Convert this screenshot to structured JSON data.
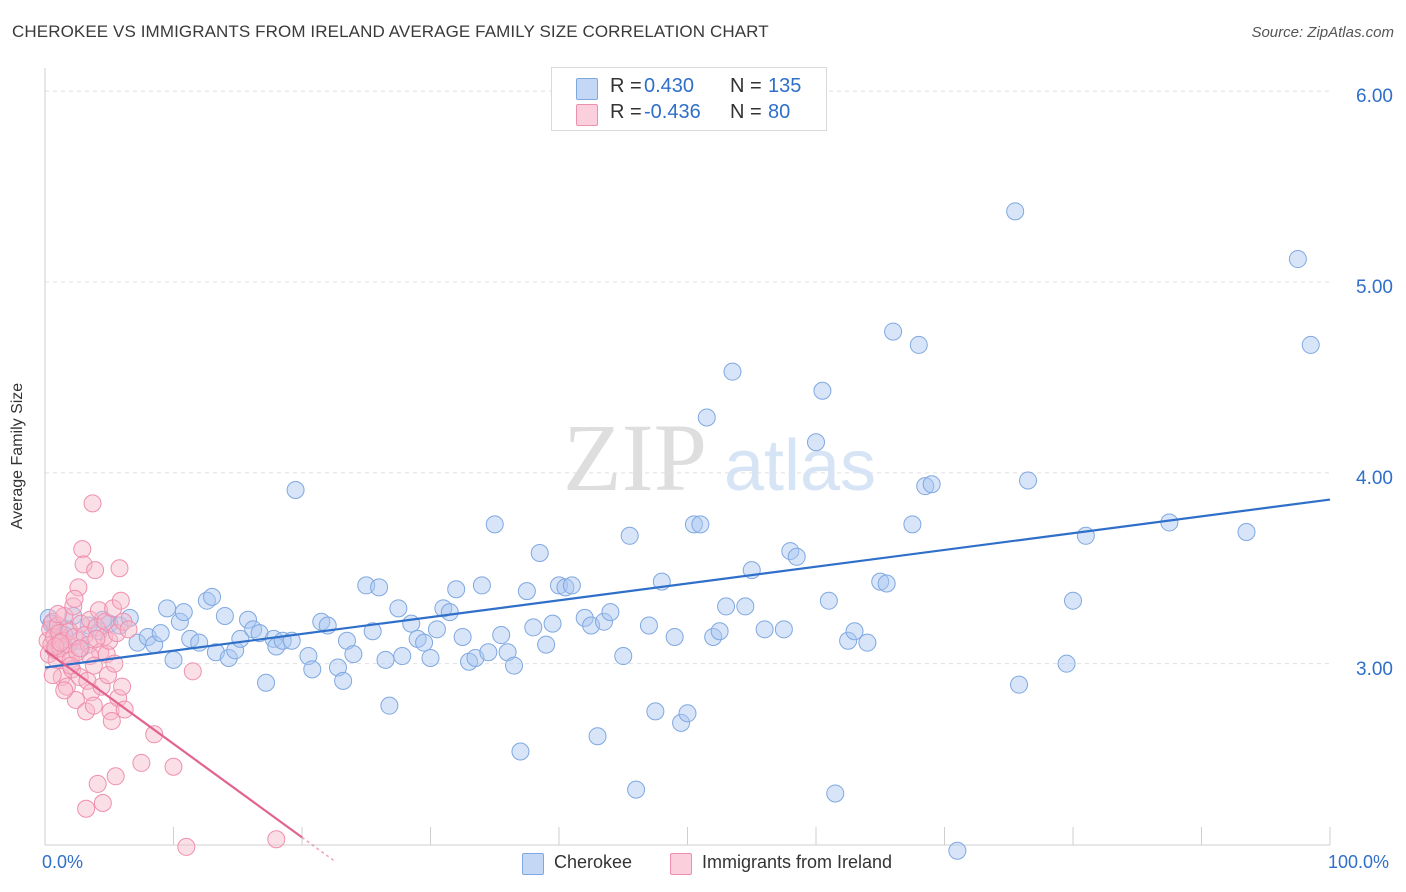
{
  "header": {
    "title": "CHEROKEE VS IMMIGRANTS FROM IRELAND AVERAGE FAMILY SIZE CORRELATION CHART",
    "source": "Source: ZipAtlas.com"
  },
  "watermark": {
    "zip": "ZIP",
    "atlas": "atlas"
  },
  "stats": [
    {
      "r_label": "R =",
      "r_value": "0.430",
      "n_label": "N =",
      "n_value": "135",
      "color": "#a9c6f2"
    },
    {
      "r_label": "R =",
      "r_value": "-0.436",
      "n_label": "N =",
      "n_value": "80",
      "color": "#f7b8c9"
    }
  ],
  "legend": [
    {
      "label": "Cherokee",
      "color": "#a9c6f2"
    },
    {
      "label": "Immigrants from Ireland",
      "color": "#f7b8c9"
    }
  ],
  "colors": {
    "blue_point": "#7fa8e0",
    "blue_line": "#2f6fc9",
    "pink_point": "#ef8fae",
    "pink_line": "#e2638f",
    "tick_label": "#2f6fc9",
    "grid": "#e0e0e0"
  },
  "chart_data": {
    "type": "scatter",
    "title": "CHEROKEE VS IMMIGRANTS FROM IRELAND AVERAGE FAMILY SIZE CORRELATION CHART",
    "xlabel": "",
    "ylabel": "Average Family Size",
    "xlim": [
      0,
      100
    ],
    "ylim": [
      2.05,
      6.1
    ],
    "x_tick_labels": [
      "0.0%",
      "100.0%"
    ],
    "y_ticks": [
      3.0,
      4.0,
      5.0,
      6.0
    ],
    "y_tick_labels": [
      "3.00",
      "4.00",
      "5.00",
      "6.00"
    ],
    "grid": true,
    "legend_position": "bottom",
    "series": [
      {
        "name": "Cherokee",
        "trend": {
          "x": [
            0,
            100
          ],
          "y": [
            2.98,
            3.86
          ]
        },
        "points": [
          [
            0.3,
            3.24
          ],
          [
            0.8,
            3.19
          ],
          [
            1.2,
            3.14
          ],
          [
            1.8,
            3.18
          ],
          [
            2.6,
            3.12
          ],
          [
            3.4,
            3.2
          ],
          [
            4.2,
            3.17
          ],
          [
            5.0,
            3.21
          ],
          [
            5.8,
            3.2
          ],
          [
            6.6,
            3.24
          ],
          [
            7.2,
            3.11
          ],
          [
            8.0,
            3.14
          ],
          [
            8.5,
            3.1
          ],
          [
            9.0,
            3.16
          ],
          [
            9.5,
            3.29
          ],
          [
            10.0,
            3.02
          ],
          [
            10.5,
            3.22
          ],
          [
            10.8,
            3.27
          ],
          [
            11.3,
            3.13
          ],
          [
            12.0,
            3.11
          ],
          [
            12.6,
            3.33
          ],
          [
            13.0,
            3.35
          ],
          [
            13.3,
            3.06
          ],
          [
            14.0,
            3.25
          ],
          [
            14.3,
            3.03
          ],
          [
            14.8,
            3.07
          ],
          [
            15.2,
            3.13
          ],
          [
            15.8,
            3.23
          ],
          [
            16.2,
            3.18
          ],
          [
            16.7,
            3.16
          ],
          [
            17.2,
            2.9
          ],
          [
            17.8,
            3.13
          ],
          [
            18.0,
            3.09
          ],
          [
            18.5,
            3.12
          ],
          [
            19.2,
            3.12
          ],
          [
            19.5,
            3.91
          ],
          [
            20.5,
            3.04
          ],
          [
            20.8,
            2.97
          ],
          [
            21.5,
            3.22
          ],
          [
            22.0,
            3.2
          ],
          [
            22.8,
            2.98
          ],
          [
            23.2,
            2.91
          ],
          [
            23.5,
            3.12
          ],
          [
            24.0,
            3.05
          ],
          [
            25.0,
            3.41
          ],
          [
            25.5,
            3.17
          ],
          [
            26.0,
            3.4
          ],
          [
            26.5,
            3.02
          ],
          [
            26.8,
            2.78
          ],
          [
            27.5,
            3.29
          ],
          [
            27.8,
            3.04
          ],
          [
            28.5,
            3.21
          ],
          [
            29.0,
            3.13
          ],
          [
            29.5,
            3.11
          ],
          [
            30.0,
            3.03
          ],
          [
            30.5,
            3.18
          ],
          [
            31.0,
            3.29
          ],
          [
            31.5,
            3.27
          ],
          [
            32.0,
            3.39
          ],
          [
            32.5,
            3.14
          ],
          [
            33.0,
            3.01
          ],
          [
            33.5,
            3.03
          ],
          [
            34.0,
            3.41
          ],
          [
            34.5,
            3.06
          ],
          [
            35.0,
            3.73
          ],
          [
            35.5,
            3.15
          ],
          [
            36.0,
            3.06
          ],
          [
            36.5,
            2.99
          ],
          [
            37.0,
            2.54
          ],
          [
            37.5,
            3.38
          ],
          [
            38.0,
            3.19
          ],
          [
            38.5,
            3.58
          ],
          [
            39.0,
            3.1
          ],
          [
            39.5,
            3.21
          ],
          [
            40.0,
            3.41
          ],
          [
            40.5,
            3.4
          ],
          [
            41.0,
            3.41
          ],
          [
            42.0,
            3.24
          ],
          [
            42.5,
            3.2
          ],
          [
            43.0,
            2.62
          ],
          [
            43.5,
            3.22
          ],
          [
            44.0,
            3.27
          ],
          [
            45.0,
            3.04
          ],
          [
            45.5,
            3.67
          ],
          [
            46.0,
            2.34
          ],
          [
            47.0,
            3.2
          ],
          [
            47.5,
            2.75
          ],
          [
            48.0,
            3.43
          ],
          [
            49.0,
            3.14
          ],
          [
            49.5,
            2.69
          ],
          [
            50.0,
            2.74
          ],
          [
            50.5,
            3.73
          ],
          [
            51.0,
            3.73
          ],
          [
            51.5,
            4.29
          ],
          [
            52.0,
            3.14
          ],
          [
            52.5,
            3.17
          ],
          [
            53.0,
            3.3
          ],
          [
            53.5,
            4.53
          ],
          [
            54.5,
            3.3
          ],
          [
            55.0,
            3.49
          ],
          [
            56.0,
            3.18
          ],
          [
            57.5,
            3.18
          ],
          [
            58.0,
            3.59
          ],
          [
            58.5,
            3.56
          ],
          [
            60.0,
            4.16
          ],
          [
            60.5,
            4.43
          ],
          [
            61.0,
            3.33
          ],
          [
            61.5,
            2.32
          ],
          [
            62.5,
            3.12
          ],
          [
            63.0,
            3.17
          ],
          [
            64.0,
            3.11
          ],
          [
            65.0,
            3.43
          ],
          [
            65.5,
            3.42
          ],
          [
            66.0,
            4.74
          ],
          [
            67.5,
            3.73
          ],
          [
            68.0,
            4.67
          ],
          [
            68.5,
            3.93
          ],
          [
            69.0,
            3.94
          ],
          [
            71.0,
            2.02
          ],
          [
            75.5,
            5.37
          ],
          [
            75.8,
            2.89
          ],
          [
            76.5,
            3.96
          ],
          [
            79.5,
            3.0
          ],
          [
            80.0,
            3.33
          ],
          [
            81.0,
            3.67
          ],
          [
            87.5,
            3.74
          ],
          [
            93.5,
            3.69
          ],
          [
            97.5,
            5.12
          ],
          [
            98.5,
            4.67
          ],
          [
            0.5,
            3.21
          ],
          [
            1.0,
            3.09
          ],
          [
            1.5,
            3.15
          ],
          [
            2.2,
            3.25
          ],
          [
            2.8,
            3.08
          ],
          [
            4.5,
            3.23
          ]
        ]
      },
      {
        "name": "Immigrants from Ireland",
        "trend": {
          "x": [
            0,
            20
          ],
          "y": [
            3.07,
            2.09
          ]
        },
        "points": [
          [
            0.2,
            3.12
          ],
          [
            0.3,
            3.05
          ],
          [
            0.4,
            3.18
          ],
          [
            0.5,
            3.1
          ],
          [
            0.6,
            3.22
          ],
          [
            0.7,
            3.14
          ],
          [
            0.8,
            3.07
          ],
          [
            0.9,
            3.02
          ],
          [
            1.0,
            3.2
          ],
          [
            1.1,
            3.16
          ],
          [
            1.2,
            3.08
          ],
          [
            1.3,
            2.93
          ],
          [
            1.4,
            3.12
          ],
          [
            1.5,
            3.25
          ],
          [
            1.6,
            3.04
          ],
          [
            1.7,
            2.88
          ],
          [
            1.8,
            3.1
          ],
          [
            1.9,
            3.17
          ],
          [
            2.0,
            3.02
          ],
          [
            2.1,
            2.97
          ],
          [
            2.2,
            3.3
          ],
          [
            2.3,
            3.14
          ],
          [
            2.4,
            2.81
          ],
          [
            2.5,
            3.06
          ],
          [
            2.6,
            3.4
          ],
          [
            2.7,
            2.93
          ],
          [
            2.8,
            3.21
          ],
          [
            2.9,
            3.6
          ],
          [
            3.0,
            3.52
          ],
          [
            3.1,
            3.15
          ],
          [
            3.2,
            2.75
          ],
          [
            3.3,
            2.91
          ],
          [
            3.4,
            3.1
          ],
          [
            3.5,
            3.23
          ],
          [
            3.6,
            2.85
          ],
          [
            3.7,
            3.84
          ],
          [
            3.8,
            2.78
          ],
          [
            3.9,
            3.49
          ],
          [
            4.0,
            3.19
          ],
          [
            4.1,
            2.37
          ],
          [
            4.2,
            3.28
          ],
          [
            4.3,
            3.06
          ],
          [
            4.4,
            2.88
          ],
          [
            4.5,
            2.27
          ],
          [
            4.6,
            3.14
          ],
          [
            4.7,
            3.22
          ],
          [
            4.8,
            3.05
          ],
          [
            4.9,
            2.94
          ],
          [
            5.0,
            3.12
          ],
          [
            5.1,
            2.75
          ],
          [
            5.2,
            2.7
          ],
          [
            5.3,
            3.29
          ],
          [
            5.4,
            3.0
          ],
          [
            5.5,
            2.41
          ],
          [
            5.6,
            3.16
          ],
          [
            5.7,
            2.82
          ],
          [
            5.8,
            3.5
          ],
          [
            5.9,
            3.33
          ],
          [
            6.0,
            2.88
          ],
          [
            6.1,
            3.22
          ],
          [
            6.2,
            2.76
          ],
          [
            6.5,
            3.18
          ],
          [
            7.5,
            2.48
          ],
          [
            8.5,
            2.63
          ],
          [
            10.0,
            2.46
          ],
          [
            11.0,
            2.04
          ],
          [
            11.5,
            2.96
          ],
          [
            18.0,
            2.08
          ],
          [
            0.6,
            2.94
          ],
          [
            1.5,
            2.86
          ],
          [
            2.3,
            3.34
          ],
          [
            3.2,
            2.24
          ],
          [
            3.5,
            3.04
          ],
          [
            1.0,
            3.26
          ],
          [
            2.0,
            2.99
          ],
          [
            0.8,
            3.09
          ],
          [
            4.0,
            3.13
          ],
          [
            1.2,
            3.11
          ],
          [
            3.8,
            2.99
          ],
          [
            2.7,
            3.08
          ]
        ]
      }
    ]
  }
}
